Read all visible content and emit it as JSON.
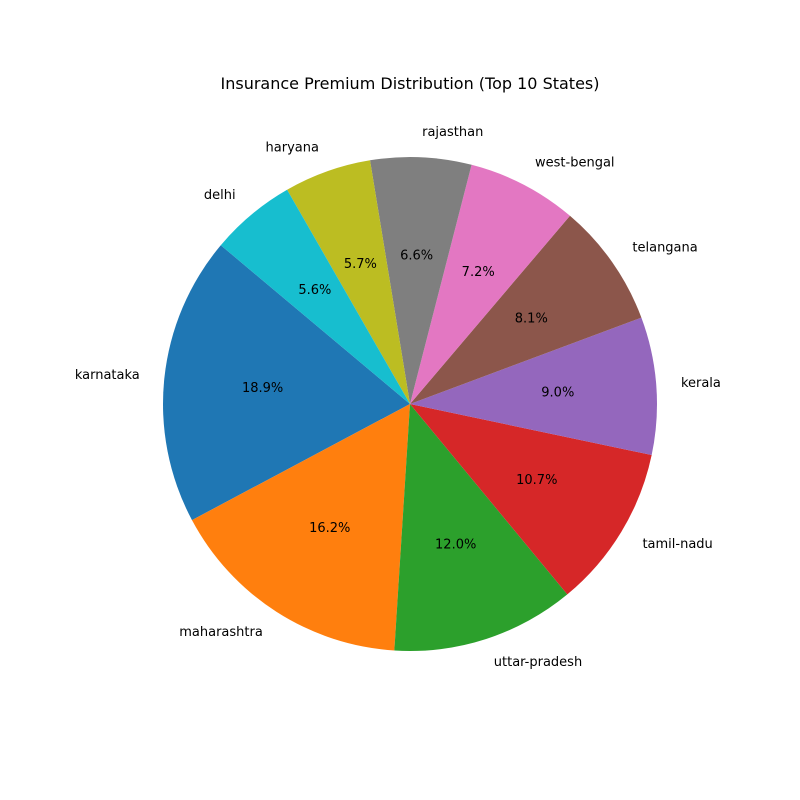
{
  "chart_data": {
    "type": "pie",
    "title": "Insurance Premium Distribution (Top 10 States)",
    "start_angle_deg": 140,
    "direction": "counterclockwise",
    "slices": [
      {
        "label": "karnataka",
        "value": 18.9,
        "pct_label": "18.9%",
        "color": "#1f77b4"
      },
      {
        "label": "maharashtra",
        "value": 16.2,
        "pct_label": "16.2%",
        "color": "#ff7f0e"
      },
      {
        "label": "uttar-pradesh",
        "value": 12.0,
        "pct_label": "12.0%",
        "color": "#2ca02c"
      },
      {
        "label": "tamil-nadu",
        "value": 10.7,
        "pct_label": "10.7%",
        "color": "#d62728"
      },
      {
        "label": "kerala",
        "value": 9.0,
        "pct_label": "9.0%",
        "color": "#9467bd"
      },
      {
        "label": "telangana",
        "value": 8.1,
        "pct_label": "8.1%",
        "color": "#8c564b"
      },
      {
        "label": "west-bengal",
        "value": 7.2,
        "pct_label": "7.2%",
        "color": "#e377c2"
      },
      {
        "label": "rajasthan",
        "value": 6.6,
        "pct_label": "6.6%",
        "color": "#7f7f7f"
      },
      {
        "label": "haryana",
        "value": 5.7,
        "pct_label": "5.7%",
        "color": "#bcbd22"
      },
      {
        "label": "delhi",
        "value": 5.6,
        "pct_label": "5.6%",
        "color": "#17becf"
      }
    ]
  }
}
